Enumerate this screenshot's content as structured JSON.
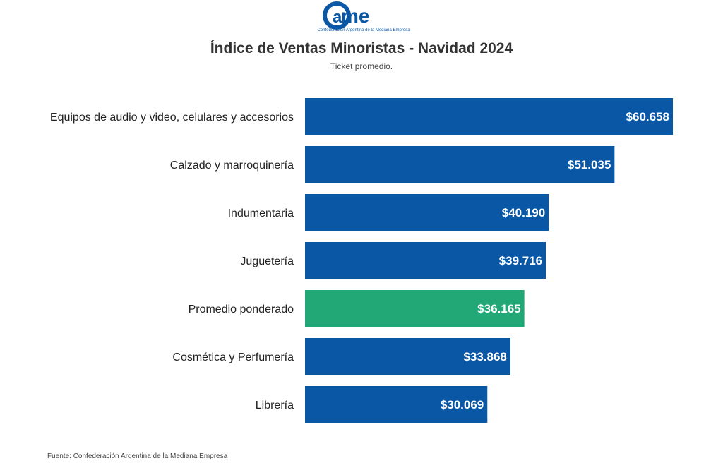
{
  "logo": {
    "text": "came",
    "tagline": "Confederación Argentina de la Mediana Empresa"
  },
  "chart_data": {
    "type": "bar",
    "orientation": "horizontal",
    "title": "Índice de Ventas Minoristas - Navidad 2024",
    "subtitle": "Ticket promedio.",
    "categories": [
      "Equipos de audio y video, celulares y accesorios",
      "Calzado y marroquinería",
      "Indumentaria",
      "Juguetería",
      "Promedio ponderado",
      "Cosmética y Perfumería",
      "Librería"
    ],
    "values": [
      60658,
      51035,
      40190,
      39716,
      36165,
      33868,
      30069
    ],
    "labels": [
      "$60.658",
      "$51.035",
      "$40.190",
      "$39.716",
      "$36.165",
      "$33.868",
      "$30.069"
    ],
    "colors": [
      "#0a57a6",
      "#0a57a6",
      "#0a57a6",
      "#0a57a6",
      "#22a876",
      "#0a57a6",
      "#0a57a6"
    ],
    "grid": false,
    "source": "Fuente: Confederación Argentina de la Mediana Empresa"
  }
}
